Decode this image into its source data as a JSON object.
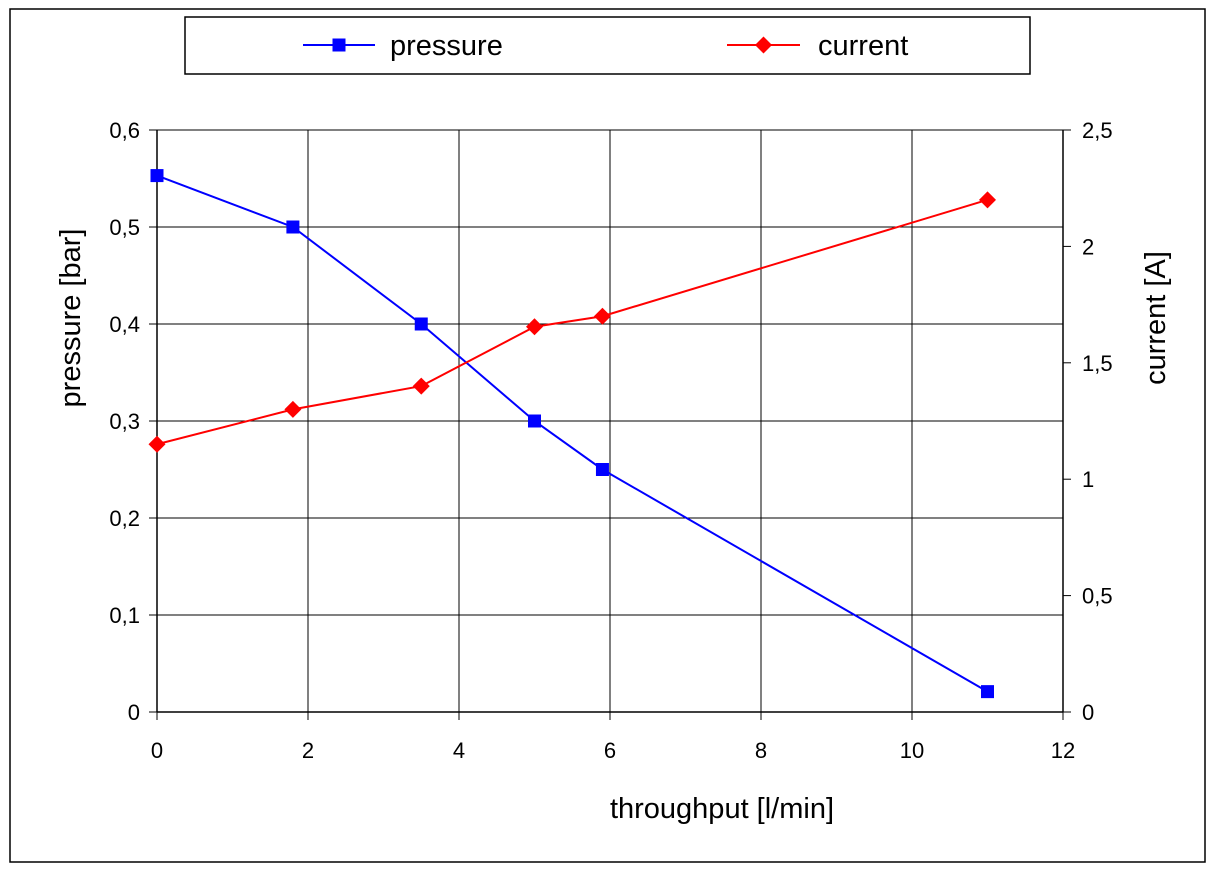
{
  "chart_data": {
    "type": "line",
    "title": "",
    "xlabel": "throughput [l/min]",
    "ylabel": "pressure [bar]",
    "y2label": "current [A]",
    "xlim": [
      0,
      12
    ],
    "ylim": [
      0,
      0.6
    ],
    "y2lim": [
      0,
      2.5
    ],
    "x_ticks": [
      "0",
      "2",
      "4",
      "6",
      "8",
      "10",
      "12"
    ],
    "y_ticks": [
      "0",
      "0,1",
      "0,2",
      "0,3",
      "0,4",
      "0,5",
      "0,6"
    ],
    "y2_ticks": [
      "0",
      "0,5",
      "1",
      "1,5",
      "2",
      "2,5"
    ],
    "grid": true,
    "legend_position": "top",
    "series": [
      {
        "name": "pressure",
        "axis": "left",
        "color": "#0000ff",
        "marker": "square",
        "x": [
          0,
          1.8,
          3.5,
          5.0,
          5.9,
          11.0
        ],
        "y": [
          0.553,
          0.5,
          0.4,
          0.3,
          0.25,
          0.021
        ]
      },
      {
        "name": "current",
        "axis": "right",
        "color": "#ff0000",
        "marker": "diamond",
        "x": [
          0,
          1.8,
          3.5,
          5.0,
          5.9,
          11.0
        ],
        "y": [
          1.15,
          1.3,
          1.4,
          1.655,
          1.7,
          2.2
        ]
      }
    ]
  }
}
